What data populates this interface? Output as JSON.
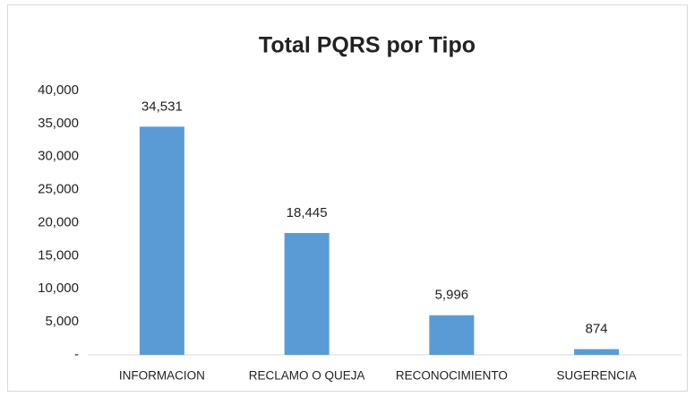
{
  "chart_data": {
    "type": "bar",
    "title": "Total PQRS por Tipo",
    "categories": [
      "INFORMACION",
      "RECLAMO O QUEJA",
      "RECONOCIMIENTO",
      "SUGERENCIA"
    ],
    "values": [
      34531,
      18445,
      5996,
      874
    ],
    "value_labels": [
      "34,531",
      "18,445",
      "5,996",
      "874"
    ],
    "color": "#5b9bd5",
    "ylim": [
      0,
      40000
    ],
    "yticks": [
      {
        "value": 0,
        "label": "-"
      },
      {
        "value": 5000,
        "label": "5,000"
      },
      {
        "value": 10000,
        "label": "10,000"
      },
      {
        "value": 15000,
        "label": "15,000"
      },
      {
        "value": 20000,
        "label": "20,000"
      },
      {
        "value": 25000,
        "label": "25,000"
      },
      {
        "value": 30000,
        "label": "30,000"
      },
      {
        "value": 35000,
        "label": "35,000"
      },
      {
        "value": 40000,
        "label": "40,000"
      }
    ],
    "grid": false
  }
}
